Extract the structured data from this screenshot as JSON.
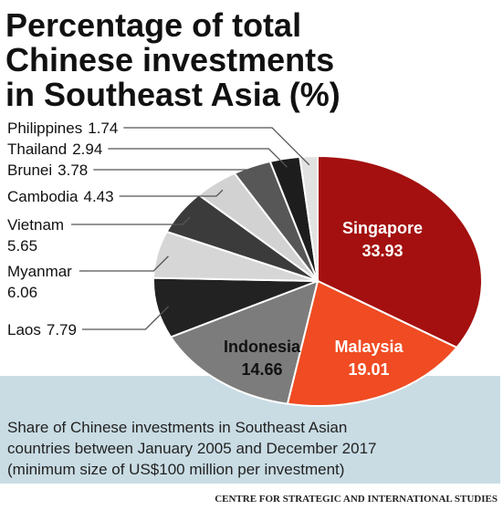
{
  "chart_data": {
    "type": "pie",
    "title": [
      "Percentage of total",
      "Chinese investments",
      "in Southeast Asia (%)"
    ],
    "categories": [
      "Singapore",
      "Malaysia",
      "Indonesia",
      "Laos",
      "Myanmar",
      "Vietnam",
      "Cambodia",
      "Brunei",
      "Thailand",
      "Philippines"
    ],
    "values": [
      33.93,
      19.01,
      14.66,
      7.79,
      6.06,
      5.65,
      4.43,
      3.78,
      2.94,
      1.74
    ],
    "colors": [
      "#a3100f",
      "#f04b22",
      "#7c7c7c",
      "#222222",
      "#d6d6d6",
      "#3b3b3b",
      "#d2d2d2",
      "#575757",
      "#1d1d1d",
      "#e2e2e2"
    ],
    "caption": [
      "Share of Chinese investments in Southeast Asian",
      "countries between January 2005 and December 2017",
      "(minimum size of US$100 million per investment)"
    ],
    "source": "CENTRE FOR STRATEGIC AND INTERNATIONAL STUDIES"
  }
}
